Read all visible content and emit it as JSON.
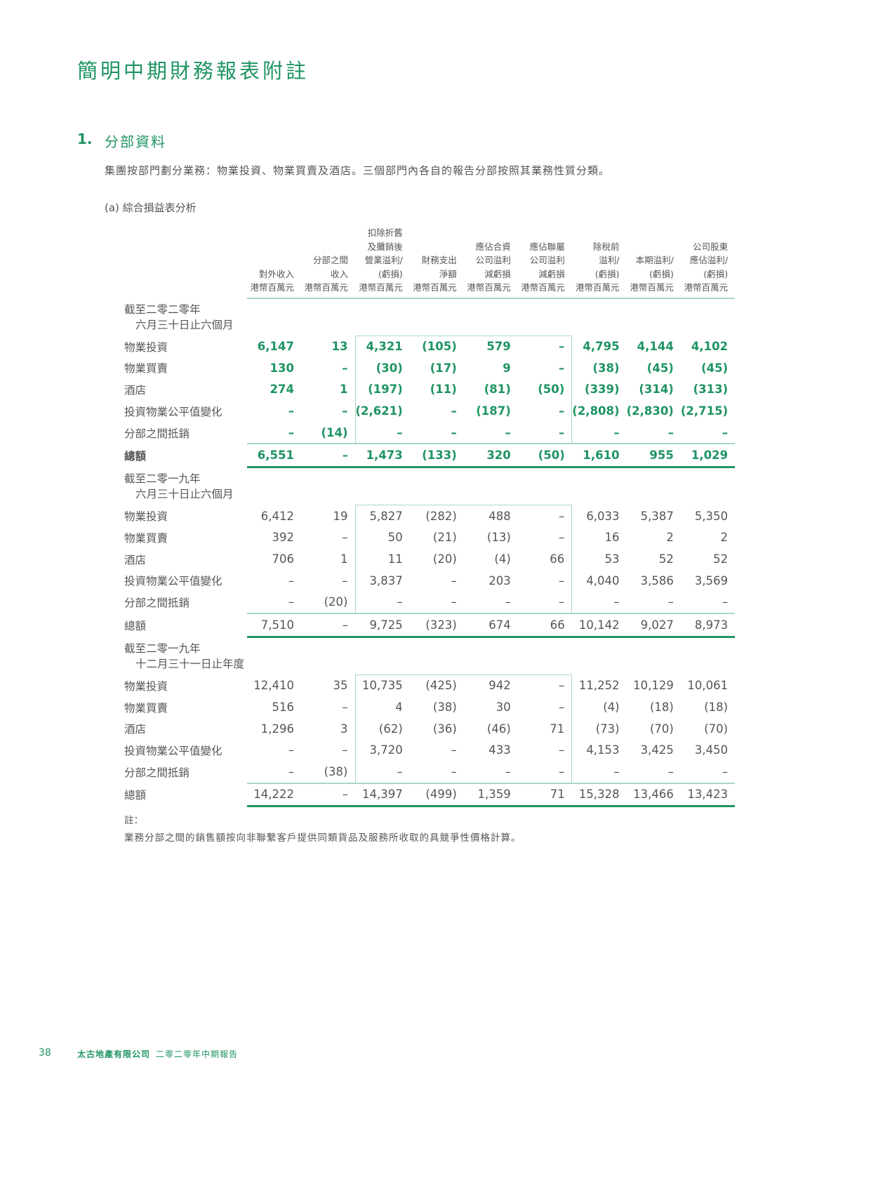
{
  "page_title": "簡明中期財務報表附註",
  "section": {
    "number": "1.",
    "title": "分部資料"
  },
  "intro": "集團按部門劃分業務：物業投資、物業買賣及酒店。三個部門內各自的報告分部按照其業務性質分類。",
  "subheading": "(a) 綜合損益表分析",
  "colors": {
    "accent": "#1f9462",
    "rule_light": "#a8d8c3",
    "text": "#555555"
  },
  "columns": [
    [
      "對外收入",
      "港幣百萬元"
    ],
    [
      "分部之間",
      "收入",
      "港幣百萬元"
    ],
    [
      "扣除折舊",
      "及攤銷後",
      "營業溢利/",
      "(虧損)",
      "港幣百萬元"
    ],
    [
      "財務支出",
      "淨額",
      "港幣百萬元"
    ],
    [
      "應佔合資",
      "公司溢利",
      "減虧損",
      "港幣百萬元"
    ],
    [
      "應佔聯屬",
      "公司溢利",
      "減虧損",
      "港幣百萬元"
    ],
    [
      "除稅前",
      "溢利/",
      "(虧損)",
      "港幣百萬元"
    ],
    [
      "本期溢利/",
      "(虧損)",
      "港幣百萬元"
    ],
    [
      "公司股東",
      "應佔溢利/",
      "(虧損)",
      "港幣百萬元"
    ]
  ],
  "sections": [
    {
      "heading": [
        "截至二零二零年",
        "六月三十日止六個月"
      ],
      "current": true,
      "rows": [
        {
          "label": "物業投資",
          "values": [
            "6,147",
            "13",
            "4,321",
            "(105)",
            "579",
            "–",
            "4,795",
            "4,144",
            "4,102"
          ]
        },
        {
          "label": "物業買賣",
          "values": [
            "130",
            "–",
            "(30)",
            "(17)",
            "9",
            "–",
            "(38)",
            "(45)",
            "(45)"
          ]
        },
        {
          "label": "酒店",
          "values": [
            "274",
            "1",
            "(197)",
            "(11)",
            "(81)",
            "(50)",
            "(339)",
            "(314)",
            "(313)"
          ]
        },
        {
          "label": "投資物業公平值變化",
          "values": [
            "–",
            "–",
            "(2,621)",
            "–",
            "(187)",
            "–",
            "(2,808)",
            "(2,830)",
            "(2,715)"
          ]
        },
        {
          "label": "分部之間抵銷",
          "values": [
            "–",
            "(14)",
            "–",
            "–",
            "–",
            "–",
            "–",
            "–",
            "–"
          ]
        }
      ],
      "total": {
        "label": "總額",
        "values": [
          "6,551",
          "–",
          "1,473",
          "(133)",
          "320",
          "(50)",
          "1,610",
          "955",
          "1,029"
        ]
      }
    },
    {
      "heading": [
        "截至二零一九年",
        "六月三十日止六個月"
      ],
      "current": false,
      "rows": [
        {
          "label": "物業投資",
          "values": [
            "6,412",
            "19",
            "5,827",
            "(282)",
            "488",
            "–",
            "6,033",
            "5,387",
            "5,350"
          ]
        },
        {
          "label": "物業買賣",
          "values": [
            "392",
            "–",
            "50",
            "(21)",
            "(13)",
            "–",
            "16",
            "2",
            "2"
          ]
        },
        {
          "label": "酒店",
          "values": [
            "706",
            "1",
            "11",
            "(20)",
            "(4)",
            "66",
            "53",
            "52",
            "52"
          ]
        },
        {
          "label": "投資物業公平值變化",
          "values": [
            "–",
            "–",
            "3,837",
            "–",
            "203",
            "–",
            "4,040",
            "3,586",
            "3,569"
          ]
        },
        {
          "label": "分部之間抵銷",
          "values": [
            "–",
            "(20)",
            "–",
            "–",
            "–",
            "–",
            "–",
            "–",
            "–"
          ]
        }
      ],
      "total": {
        "label": "總額",
        "values": [
          "7,510",
          "–",
          "9,725",
          "(323)",
          "674",
          "66",
          "10,142",
          "9,027",
          "8,973"
        ]
      }
    },
    {
      "heading": [
        "截至二零一九年",
        "十二月三十一日止年度"
      ],
      "current": false,
      "rows": [
        {
          "label": "物業投資",
          "values": [
            "12,410",
            "35",
            "10,735",
            "(425)",
            "942",
            "–",
            "11,252",
            "10,129",
            "10,061"
          ]
        },
        {
          "label": "物業買賣",
          "values": [
            "516",
            "–",
            "4",
            "(38)",
            "30",
            "–",
            "(4)",
            "(18)",
            "(18)"
          ]
        },
        {
          "label": "酒店",
          "values": [
            "1,296",
            "3",
            "(62)",
            "(36)",
            "(46)",
            "71",
            "(73)",
            "(70)",
            "(70)"
          ]
        },
        {
          "label": "投資物業公平值變化",
          "values": [
            "–",
            "–",
            "3,720",
            "–",
            "433",
            "–",
            "4,153",
            "3,425",
            "3,450"
          ]
        },
        {
          "label": "分部之間抵銷",
          "values": [
            "–",
            "(38)",
            "–",
            "–",
            "–",
            "–",
            "–",
            "–",
            "–"
          ]
        }
      ],
      "total": {
        "label": "總額",
        "values": [
          "14,222",
          "–",
          "14,397",
          "(499)",
          "1,359",
          "71",
          "15,328",
          "13,466",
          "13,423"
        ]
      }
    }
  ],
  "note_heading": "註：",
  "note": "業務分部之間的銷售額按向非聯繫客戶提供同類貨品及服務所收取的具競爭性價格計算。",
  "footer": {
    "page_number": "38",
    "company": "太古地產有限公司",
    "report": "二零二零年中期報告"
  }
}
